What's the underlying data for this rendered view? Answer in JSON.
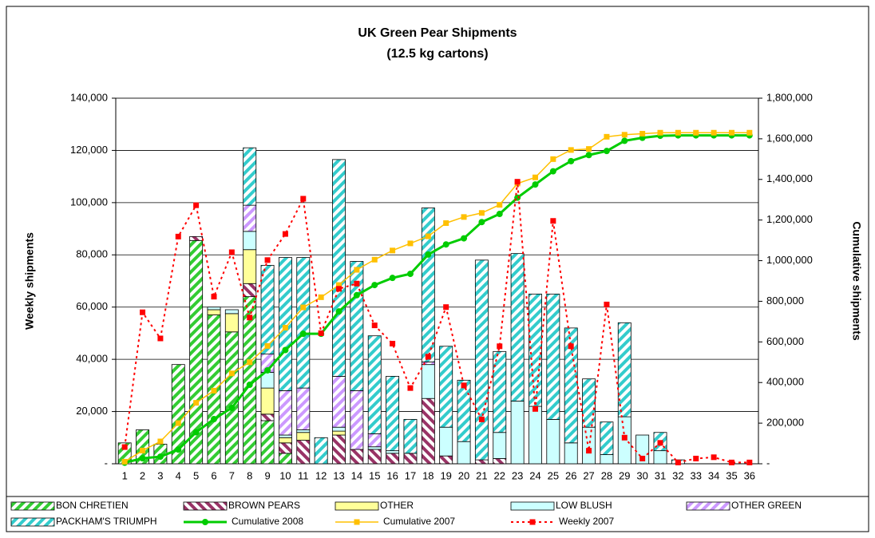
{
  "chart_data": {
    "type": "bar",
    "stacked": true,
    "title": "UK Green Pear Shipments",
    "subtitle": "(12.5 kg cartons)",
    "ylabel": "Weekly shipments",
    "y2label": "Cumulative shipments",
    "categories": [
      "1",
      "2",
      "3",
      "4",
      "5",
      "6",
      "7",
      "8",
      "9",
      "10",
      "11",
      "12",
      "13",
      "14",
      "15",
      "16",
      "17",
      "18",
      "19",
      "20",
      "21",
      "22",
      "23",
      "24",
      "25",
      "26",
      "27",
      "28",
      "29",
      "30",
      "31",
      "32",
      "33",
      "34",
      "35",
      "36"
    ],
    "ylim": [
      0,
      140000
    ],
    "yticks": [
      {
        "value": 0,
        "label": "-"
      },
      {
        "value": 20000,
        "label": "20,000"
      },
      {
        "value": 40000,
        "label": "40,000"
      },
      {
        "value": 60000,
        "label": "60,000"
      },
      {
        "value": 80000,
        "label": "80,000"
      },
      {
        "value": 100000,
        "label": "100,000"
      },
      {
        "value": 120000,
        "label": "120,000"
      },
      {
        "value": 140000,
        "label": "140,000"
      }
    ],
    "y2lim": [
      0,
      1800000
    ],
    "y2ticks": [
      {
        "value": 0,
        "label": "-"
      },
      {
        "value": 200000,
        "label": "200,000"
      },
      {
        "value": 400000,
        "label": "400,000"
      },
      {
        "value": 600000,
        "label": "600,000"
      },
      {
        "value": 800000,
        "label": "800,000"
      },
      {
        "value": 1000000,
        "label": "1,000,000"
      },
      {
        "value": 1200000,
        "label": "1,200,000"
      },
      {
        "value": 1400000,
        "label": "1,400,000"
      },
      {
        "value": 1600000,
        "label": "1,600,000"
      },
      {
        "value": 1800000,
        "label": "1,800,000"
      }
    ],
    "grid": true,
    "legend": "bottom",
    "series": [
      {
        "name": "BON CHRETIEN",
        "color": "#33cc33",
        "hatch": true,
        "values": [
          8000,
          13000,
          7500,
          38000,
          85500,
          57000,
          50500,
          64000,
          16500,
          4000,
          0,
          0,
          0,
          0,
          0,
          0,
          0,
          0,
          0,
          0,
          0,
          0,
          0,
          0,
          0,
          0,
          0,
          0,
          0,
          0,
          0,
          0,
          0,
          0,
          0,
          0
        ]
      },
      {
        "name": "BROWN PEARS",
        "color": "#993366",
        "hatch": true,
        "values": [
          0,
          0,
          0,
          0,
          1500,
          0,
          0,
          5000,
          2500,
          4000,
          9000,
          0,
          11000,
          5500,
          5500,
          4000,
          4000,
          25000,
          3000,
          0,
          1500,
          2000,
          0,
          0,
          0,
          0,
          0,
          0,
          0,
          0,
          0,
          0,
          0,
          0,
          0,
          0
        ]
      },
      {
        "name": "OTHER",
        "color": "#ffff99",
        "hatch": false,
        "values": [
          0,
          0,
          0,
          0,
          0,
          2000,
          7000,
          13000,
          10000,
          2000,
          3000,
          0,
          1500,
          0,
          0,
          0,
          0,
          0,
          0,
          0,
          0,
          0,
          0,
          0,
          0,
          0,
          0,
          0,
          0,
          0,
          0,
          0,
          0,
          0,
          0,
          0
        ]
      },
      {
        "name": "LOW BLUSH",
        "color": "#ccffff",
        "hatch": false,
        "values": [
          0,
          0,
          0,
          0,
          0,
          1000,
          1500,
          7000,
          6000,
          1000,
          1000,
          0,
          1500,
          0,
          1000,
          1000,
          0,
          13000,
          11000,
          8500,
          0,
          10000,
          24000,
          22000,
          17000,
          8000,
          14000,
          3500,
          18000,
          11000,
          5000,
          0,
          0,
          0,
          0,
          0
        ]
      },
      {
        "name": "OTHER GREEN",
        "color": "#cc99ff",
        "hatch": true,
        "values": [
          0,
          0,
          0,
          0,
          0,
          0,
          0,
          10000,
          7000,
          17000,
          16000,
          0,
          19500,
          22500,
          5000,
          0,
          0,
          1000,
          0,
          0,
          0,
          0,
          0,
          0,
          0,
          0,
          0,
          0,
          0,
          0,
          0,
          0,
          0,
          0,
          0,
          0
        ]
      },
      {
        "name": "PACKHAM'S TRIUMPH",
        "color": "#33cccc",
        "hatch": true,
        "values": [
          0,
          0,
          0,
          0,
          0,
          0,
          0,
          22000,
          34000,
          51000,
          50000,
          10000,
          83000,
          49500,
          37500,
          28500,
          13000,
          59000,
          31000,
          23500,
          76500,
          31000,
          56500,
          43000,
          48000,
          44000,
          18500,
          12500,
          36000,
          0,
          7000,
          1500,
          0,
          0,
          0,
          0
        ]
      }
    ],
    "lines": [
      {
        "name": "Cumulative 2008",
        "color": "#00cc00",
        "axis": "y2",
        "marker": "circle",
        "width": 3,
        "dash": false,
        "values": [
          5000,
          27000,
          35000,
          70000,
          155000,
          220000,
          275000,
          389000,
          460000,
          560000,
          640000,
          640000,
          750000,
          830000,
          880000,
          915000,
          935000,
          1030000,
          1080000,
          1110000,
          1190000,
          1230000,
          1310000,
          1375000,
          1440000,
          1490000,
          1520000,
          1540000,
          1590000,
          1605000,
          1615000,
          1617000,
          1617000,
          1617000,
          1617000,
          1617000
        ]
      },
      {
        "name": "Cumulative 2007",
        "color": "#ffc000",
        "axis": "y2",
        "marker": "square",
        "width": 1.5,
        "dash": false,
        "values": [
          10000,
          65000,
          110000,
          200000,
          300000,
          360000,
          445000,
          500000,
          580000,
          670000,
          770000,
          820000,
          880000,
          955000,
          1005000,
          1050000,
          1085000,
          1120000,
          1185000,
          1215000,
          1235000,
          1275000,
          1380000,
          1410000,
          1500000,
          1545000,
          1550000,
          1610000,
          1620000,
          1625000,
          1630000,
          1630000,
          1630000,
          1630000,
          1630000,
          1630000
        ]
      },
      {
        "name": "Weekly 2007",
        "color": "#ff0000",
        "axis": "y",
        "marker": "square",
        "width": 2,
        "dash": true,
        "values": [
          6400,
          58000,
          48000,
          87000,
          99000,
          64000,
          81000,
          56000,
          78000,
          88000,
          101500,
          50000,
          67000,
          69000,
          53000,
          46000,
          29000,
          41000,
          60000,
          30000,
          17000,
          45000,
          108000,
          21000,
          93000,
          45000,
          5000,
          61000,
          10000,
          2000,
          8000,
          500,
          2000,
          2500,
          500,
          500
        ]
      }
    ]
  }
}
